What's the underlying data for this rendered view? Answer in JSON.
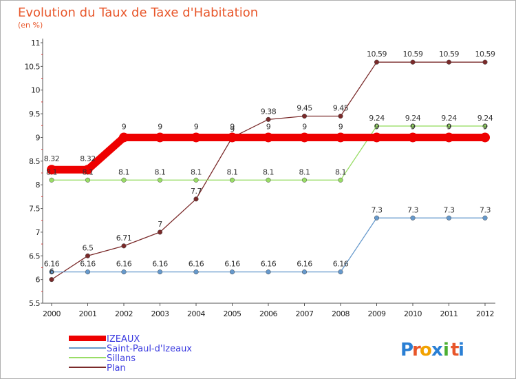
{
  "chart_data": {
    "type": "line",
    "title": "Evolution du Taux de Taxe d'Habitation",
    "subtitle": "(en %)",
    "x": [
      "2000",
      "2001",
      "2002",
      "2003",
      "2004",
      "2005",
      "2006",
      "2007",
      "2008",
      "2009",
      "2010",
      "2011",
      "2012"
    ],
    "ylim": [
      5.5,
      11
    ],
    "yticks": [
      "5.5",
      "6",
      "6.5",
      "7",
      "7.5",
      "8",
      "8.5",
      "9",
      "9.5",
      "10",
      "10.5",
      "11"
    ],
    "grid": false,
    "legend_position": "bottom-left",
    "series": [
      {
        "name": "IZEAUX",
        "color": "#ee0000",
        "values": [
          8.32,
          8.32,
          9,
          9,
          9,
          9,
          9,
          9,
          9,
          9,
          9,
          9,
          9
        ]
      },
      {
        "name": "Saint-Paul-d'Izeaux",
        "color": "#6699cc",
        "values": [
          6.16,
          6.16,
          6.16,
          6.16,
          6.16,
          6.16,
          6.16,
          6.16,
          6.16,
          7.3,
          7.3,
          7.3,
          7.3
        ]
      },
      {
        "name": "Sillans",
        "color": "#99dd66",
        "values": [
          8.1,
          8.1,
          8.1,
          8.1,
          8.1,
          8.1,
          8.1,
          8.1,
          8.1,
          9.24,
          9.24,
          9.24,
          9.24
        ]
      },
      {
        "name": "Plan",
        "color": "#7a2a2a",
        "values": [
          6,
          6.5,
          6.71,
          7,
          7.7,
          9,
          9.38,
          9.45,
          9.45,
          10.59,
          10.59,
          10.59,
          10.59
        ]
      }
    ],
    "data_labels": {
      "IZEAUX": [
        "8.32",
        "8.32",
        "9",
        "9",
        "9",
        "9",
        "9",
        "9",
        "9",
        "9",
        "9",
        "9",
        "9"
      ],
      "Saint-Paul-d'Izeaux": [
        "6.16",
        "6.16",
        "6.16",
        "6.16",
        "6.16",
        "6.16",
        "6.16",
        "6.16",
        "6.16",
        "7.3",
        "7.3",
        "7.3",
        "7.3"
      ],
      "Sillans": [
        "8.1",
        "8.1",
        "8.1",
        "8.1",
        "8.1",
        "8.1",
        "8.1",
        "8.1",
        "8.1",
        "9.24",
        "9.24",
        "9.24",
        "9.24"
      ],
      "Plan": [
        "6",
        "6.5",
        "6.71",
        "7",
        "7.7",
        "9",
        "9.38",
        "9.45",
        "9.45",
        "10.59",
        "10.59",
        "10.59",
        "10.59"
      ]
    }
  },
  "brand": {
    "text": "Proxiti",
    "letters": [
      "P",
      "r",
      "o",
      "x",
      "i",
      "t",
      "i"
    ],
    "colors": [
      "#2a7fd4",
      "#e8562a",
      "#f2a200",
      "#2a7fd4",
      "#4caf32",
      "#e8562a",
      "#2a7fd4"
    ]
  }
}
